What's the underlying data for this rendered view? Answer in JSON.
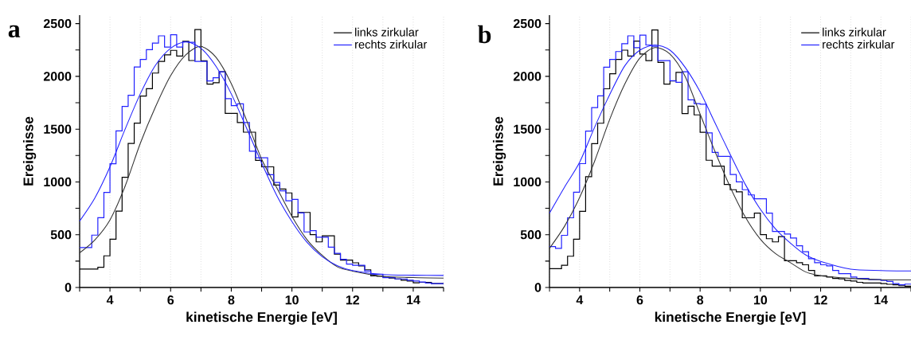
{
  "chart_data": [
    {
      "type": "histogram",
      "title": "a",
      "xlabel": "kinetische Energie [eV]",
      "ylabel": "Ereignisse",
      "bins": [
        3,
        3.2,
        3.4,
        3.6,
        3.8,
        4,
        4.2,
        4.4,
        4.6,
        4.8,
        5,
        5.2,
        5.4,
        5.6,
        5.8,
        6,
        6.2,
        6.4,
        6.6,
        6.8,
        7,
        7.2,
        7.4,
        7.6,
        7.8,
        8,
        8.2,
        8.4,
        8.6,
        8.8,
        9,
        9.2,
        9.4,
        9.6,
        9.8,
        10,
        10.2,
        10.4,
        10.6,
        10.8,
        11,
        11.2,
        11.4,
        11.6,
        11.8,
        12,
        12.2,
        12.4,
        12.6,
        12.8,
        13,
        13.2,
        13.4,
        13.6,
        13.8,
        14,
        14.2,
        14.4,
        14.6,
        14.8,
        15
      ],
      "series": [
        {
          "name": "links zirkular",
          "color": "#000000",
          "values": [
            175,
            175,
            175,
            192,
            300,
            457,
            723,
            1044,
            1365,
            1557,
            1814,
            1883,
            2031,
            2142,
            2204,
            2246,
            2192,
            2332,
            2150,
            2443,
            2147,
            1927,
            1940,
            2043,
            1649,
            1649,
            1562,
            1471,
            1471,
            1204,
            1143,
            1143,
            970,
            933,
            896,
            669,
            711,
            711,
            501,
            432,
            489,
            489,
            316,
            259,
            259,
            234,
            205,
            168,
            111,
            106,
            99,
            89,
            81,
            69,
            62,
            44,
            49,
            49,
            37,
            37
          ]
        },
        {
          "name": "rechts zirkular",
          "color": "#2222ff",
          "values": [
            378,
            378,
            496,
            661,
            901,
            1172,
            1483,
            1715,
            1821,
            2088,
            2160,
            2253,
            2315,
            2384,
            2278,
            2394,
            2278,
            2327,
            2322,
            2142,
            2142,
            1957,
            1987,
            2043,
            1789,
            1723,
            1740,
            1562,
            1291,
            1229,
            1229,
            1069,
            995,
            916,
            822,
            834,
            706,
            526,
            538,
            476,
            476,
            382,
            323,
            267,
            222,
            210,
            210,
            155,
            126,
            126,
            94,
            94,
            81,
            81,
            69,
            62,
            52,
            42,
            37,
            37
          ]
        },
        {
          "type": "line",
          "color": "#333333",
          "x": [
            3,
            3.5,
            4,
            4.5,
            5,
            5.5,
            6,
            6.5,
            7,
            7.5,
            8,
            8.5,
            9,
            9.5,
            10,
            10.5,
            11,
            11.5,
            12,
            13,
            14,
            15
          ],
          "values": [
            328,
            450,
            640,
            960,
            1365,
            1710,
            2006,
            2204,
            2283,
            2179,
            1932,
            1587,
            1217,
            945,
            674,
            452,
            304,
            195,
            155,
            106,
            94,
            89
          ]
        },
        {
          "type": "line",
          "color": "#2222ff",
          "x": [
            3,
            3.5,
            4,
            4.5,
            5,
            5.5,
            6,
            6.5,
            7,
            7.5,
            8,
            8.5,
            9,
            9.5,
            10,
            10.5,
            11,
            11.5,
            12,
            13,
            14,
            15
          ],
          "values": [
            629,
            847,
            1143,
            1500,
            1834,
            2105,
            2266,
            2327,
            2266,
            2093,
            1834,
            1513,
            1180,
            871,
            624,
            427,
            291,
            205,
            160,
            123,
            116,
            114
          ]
        }
      ],
      "xlim": [
        3,
        15
      ],
      "ylim": [
        0,
        2580
      ],
      "xticks": [
        {
          "value": 3,
          "label": null
        },
        4,
        {
          "value": 5,
          "label": null
        },
        6,
        {
          "value": 7,
          "label": null
        },
        8,
        {
          "value": 9,
          "label": null
        },
        10,
        {
          "value": 11,
          "label": null
        },
        12,
        {
          "value": 13,
          "label": null
        },
        14,
        {
          "value": 15,
          "label": null
        }
      ],
      "yticks": [
        0,
        {
          "value": 250,
          "label": null
        },
        500,
        {
          "value": 750,
          "label": null
        },
        1000,
        {
          "value": 1250,
          "label": null
        },
        1500,
        {
          "value": 1750,
          "label": null
        },
        2000,
        {
          "value": 2250,
          "label": null
        },
        2500
      ],
      "grid": "x",
      "legend": "top right"
    },
    {
      "type": "histogram",
      "title": "b",
      "xlabel": "kinetische Energie [eV]",
      "ylabel": "Ereignisse",
      "bins": [
        3,
        3.2,
        3.4,
        3.6,
        3.8,
        4,
        4.2,
        4.4,
        4.6,
        4.8,
        5,
        5.2,
        5.4,
        5.6,
        5.8,
        6,
        6.2,
        6.4,
        6.6,
        6.8,
        7,
        7.2,
        7.4,
        7.6,
        7.8,
        8,
        8.2,
        8.4,
        8.6,
        8.8,
        9,
        9.2,
        9.4,
        9.6,
        9.8,
        10,
        10.2,
        10.4,
        10.6,
        10.8,
        11,
        11.2,
        11.4,
        11.6,
        11.8,
        12,
        12.2,
        12.4,
        12.6,
        12.8,
        13,
        13.2,
        13.4,
        13.6,
        13.8,
        14,
        14.2,
        14.4,
        14.6,
        14.8,
        15
      ],
      "series": [
        {
          "name": "links zirkular",
          "color": "#000000",
          "values": [
            178,
            178,
            210,
            296,
            457,
            721,
            1050,
            1363,
            1556,
            1882,
            2025,
            2161,
            2248,
            2193,
            2334,
            2211,
            2149,
            2440,
            2132,
            1927,
            1956,
            2038,
            1647,
            1717,
            1635,
            1470,
            1205,
            1149,
            1149,
            976,
            926,
            906,
            660,
            660,
            704,
            501,
            462,
            432,
            482,
            254,
            254,
            235,
            215,
            161,
            111,
            111,
            99,
            86,
            82,
            67,
            62,
            49,
            42,
            42,
            42,
            37,
            30,
            25,
            17,
            12
          ]
        },
        {
          "name": "rechts zirkular",
          "color": "#2222ff",
          "values": [
            388,
            371,
            494,
            660,
            902,
            1173,
            1482,
            1704,
            1815,
            2087,
            2161,
            2235,
            2309,
            2384,
            2272,
            2391,
            2297,
            2285,
            2149,
            2149,
            1959,
            1944,
            2043,
            1778,
            1741,
            1736,
            1465,
            1279,
            1242,
            1242,
            1070,
            1000,
            926,
            877,
            840,
            840,
            704,
            531,
            531,
            506,
            469,
            395,
            338,
            272,
            235,
            215,
            205,
            161,
            131,
            131,
            99,
            86,
            86,
            74,
            74,
            67,
            57,
            37,
            25,
            32
          ]
        },
        {
          "type": "line",
          "color": "#333333",
          "x": [
            3,
            3.5,
            4,
            4.5,
            5,
            5.5,
            6,
            6.5,
            7,
            7.5,
            8,
            8.5,
            9,
            9.5,
            10,
            10.5,
            11,
            11.5,
            12,
            13,
            14,
            15
          ],
          "values": [
            371,
            580,
            852,
            1198,
            1593,
            1927,
            2174,
            2272,
            2211,
            2001,
            1643,
            1284,
            951,
            667,
            457,
            321,
            235,
            148,
            111,
            86,
            74,
            72
          ]
        },
        {
          "type": "line",
          "color": "#2222ff",
          "x": [
            3,
            3.5,
            4,
            4.5,
            5,
            5.5,
            6,
            6.5,
            7,
            7.5,
            8,
            8.5,
            9,
            9.5,
            10,
            10.5,
            11,
            11.5,
            12,
            13,
            14,
            15
          ],
          "values": [
            704,
            951,
            1186,
            1519,
            1828,
            2100,
            2248,
            2297,
            2248,
            2087,
            1853,
            1556,
            1260,
            976,
            741,
            556,
            420,
            309,
            247,
            173,
            161,
            156
          ]
        }
      ],
      "xlim": [
        3,
        15
      ],
      "ylim": [
        0,
        2580
      ],
      "xticks": [
        {
          "value": 3,
          "label": null
        },
        4,
        {
          "value": 5,
          "label": null
        },
        6,
        {
          "value": 7,
          "label": null
        },
        8,
        {
          "value": 9,
          "label": null
        },
        10,
        {
          "value": 11,
          "label": null
        },
        12,
        {
          "value": 13,
          "label": null
        },
        14,
        {
          "value": 15,
          "label": null
        }
      ],
      "yticks": [
        0,
        {
          "value": 250,
          "label": null
        },
        500,
        {
          "value": 750,
          "label": null
        },
        1000,
        {
          "value": 1250,
          "label": null
        },
        1500,
        {
          "value": 1750,
          "label": null
        },
        2000,
        {
          "value": 2250,
          "label": null
        },
        2500
      ],
      "grid": "x",
      "legend": "top right"
    }
  ]
}
